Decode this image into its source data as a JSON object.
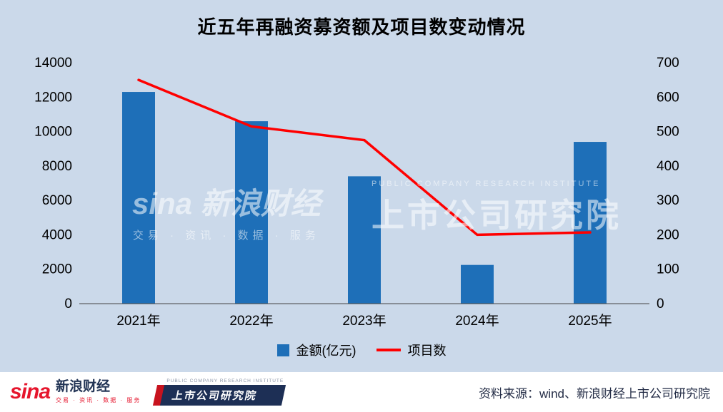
{
  "chart_data": {
    "type": "bar",
    "title": "近五年再融资募资额及项目数变动情况",
    "categories": [
      "2021年",
      "2022年",
      "2023年",
      "2024年",
      "2025年"
    ],
    "series": [
      {
        "name": "金额(亿元)",
        "type": "bar",
        "axis": "left",
        "color": "#1E6FB8",
        "values": [
          12300,
          10600,
          7400,
          2250,
          9400
        ]
      },
      {
        "name": "项目数",
        "type": "line",
        "axis": "right",
        "color": "#FF0000",
        "values": [
          650,
          515,
          475,
          200,
          207
        ]
      }
    ],
    "left_axis": {
      "min": 0,
      "max": 14000,
      "step": 2000
    },
    "right_axis": {
      "min": 0,
      "max": 700,
      "step": 100
    },
    "grid": false,
    "legend_position": "bottom",
    "background_color": "#CBD9EA"
  },
  "watermarks": {
    "left_brand": "sina 新浪财经",
    "left_tagline": "交易 · 资讯 · 数据 · 服务",
    "right_subtitle": "PUBLIC COMPANY RESEARCH INSTITUTE",
    "right_title": "上市公司研究院"
  },
  "footer": {
    "sina_logo_text": "sina",
    "sina_brand": "新浪财经",
    "sina_tagline": "交易 · 资讯 · 数据 · 服务",
    "institute_subtitle": "PUBLIC COMPANY RESEARCH INSTITUTE",
    "institute_name": "上市公司研究院",
    "source_label": "资料来源：wind、新浪财经上市公司研究院"
  }
}
